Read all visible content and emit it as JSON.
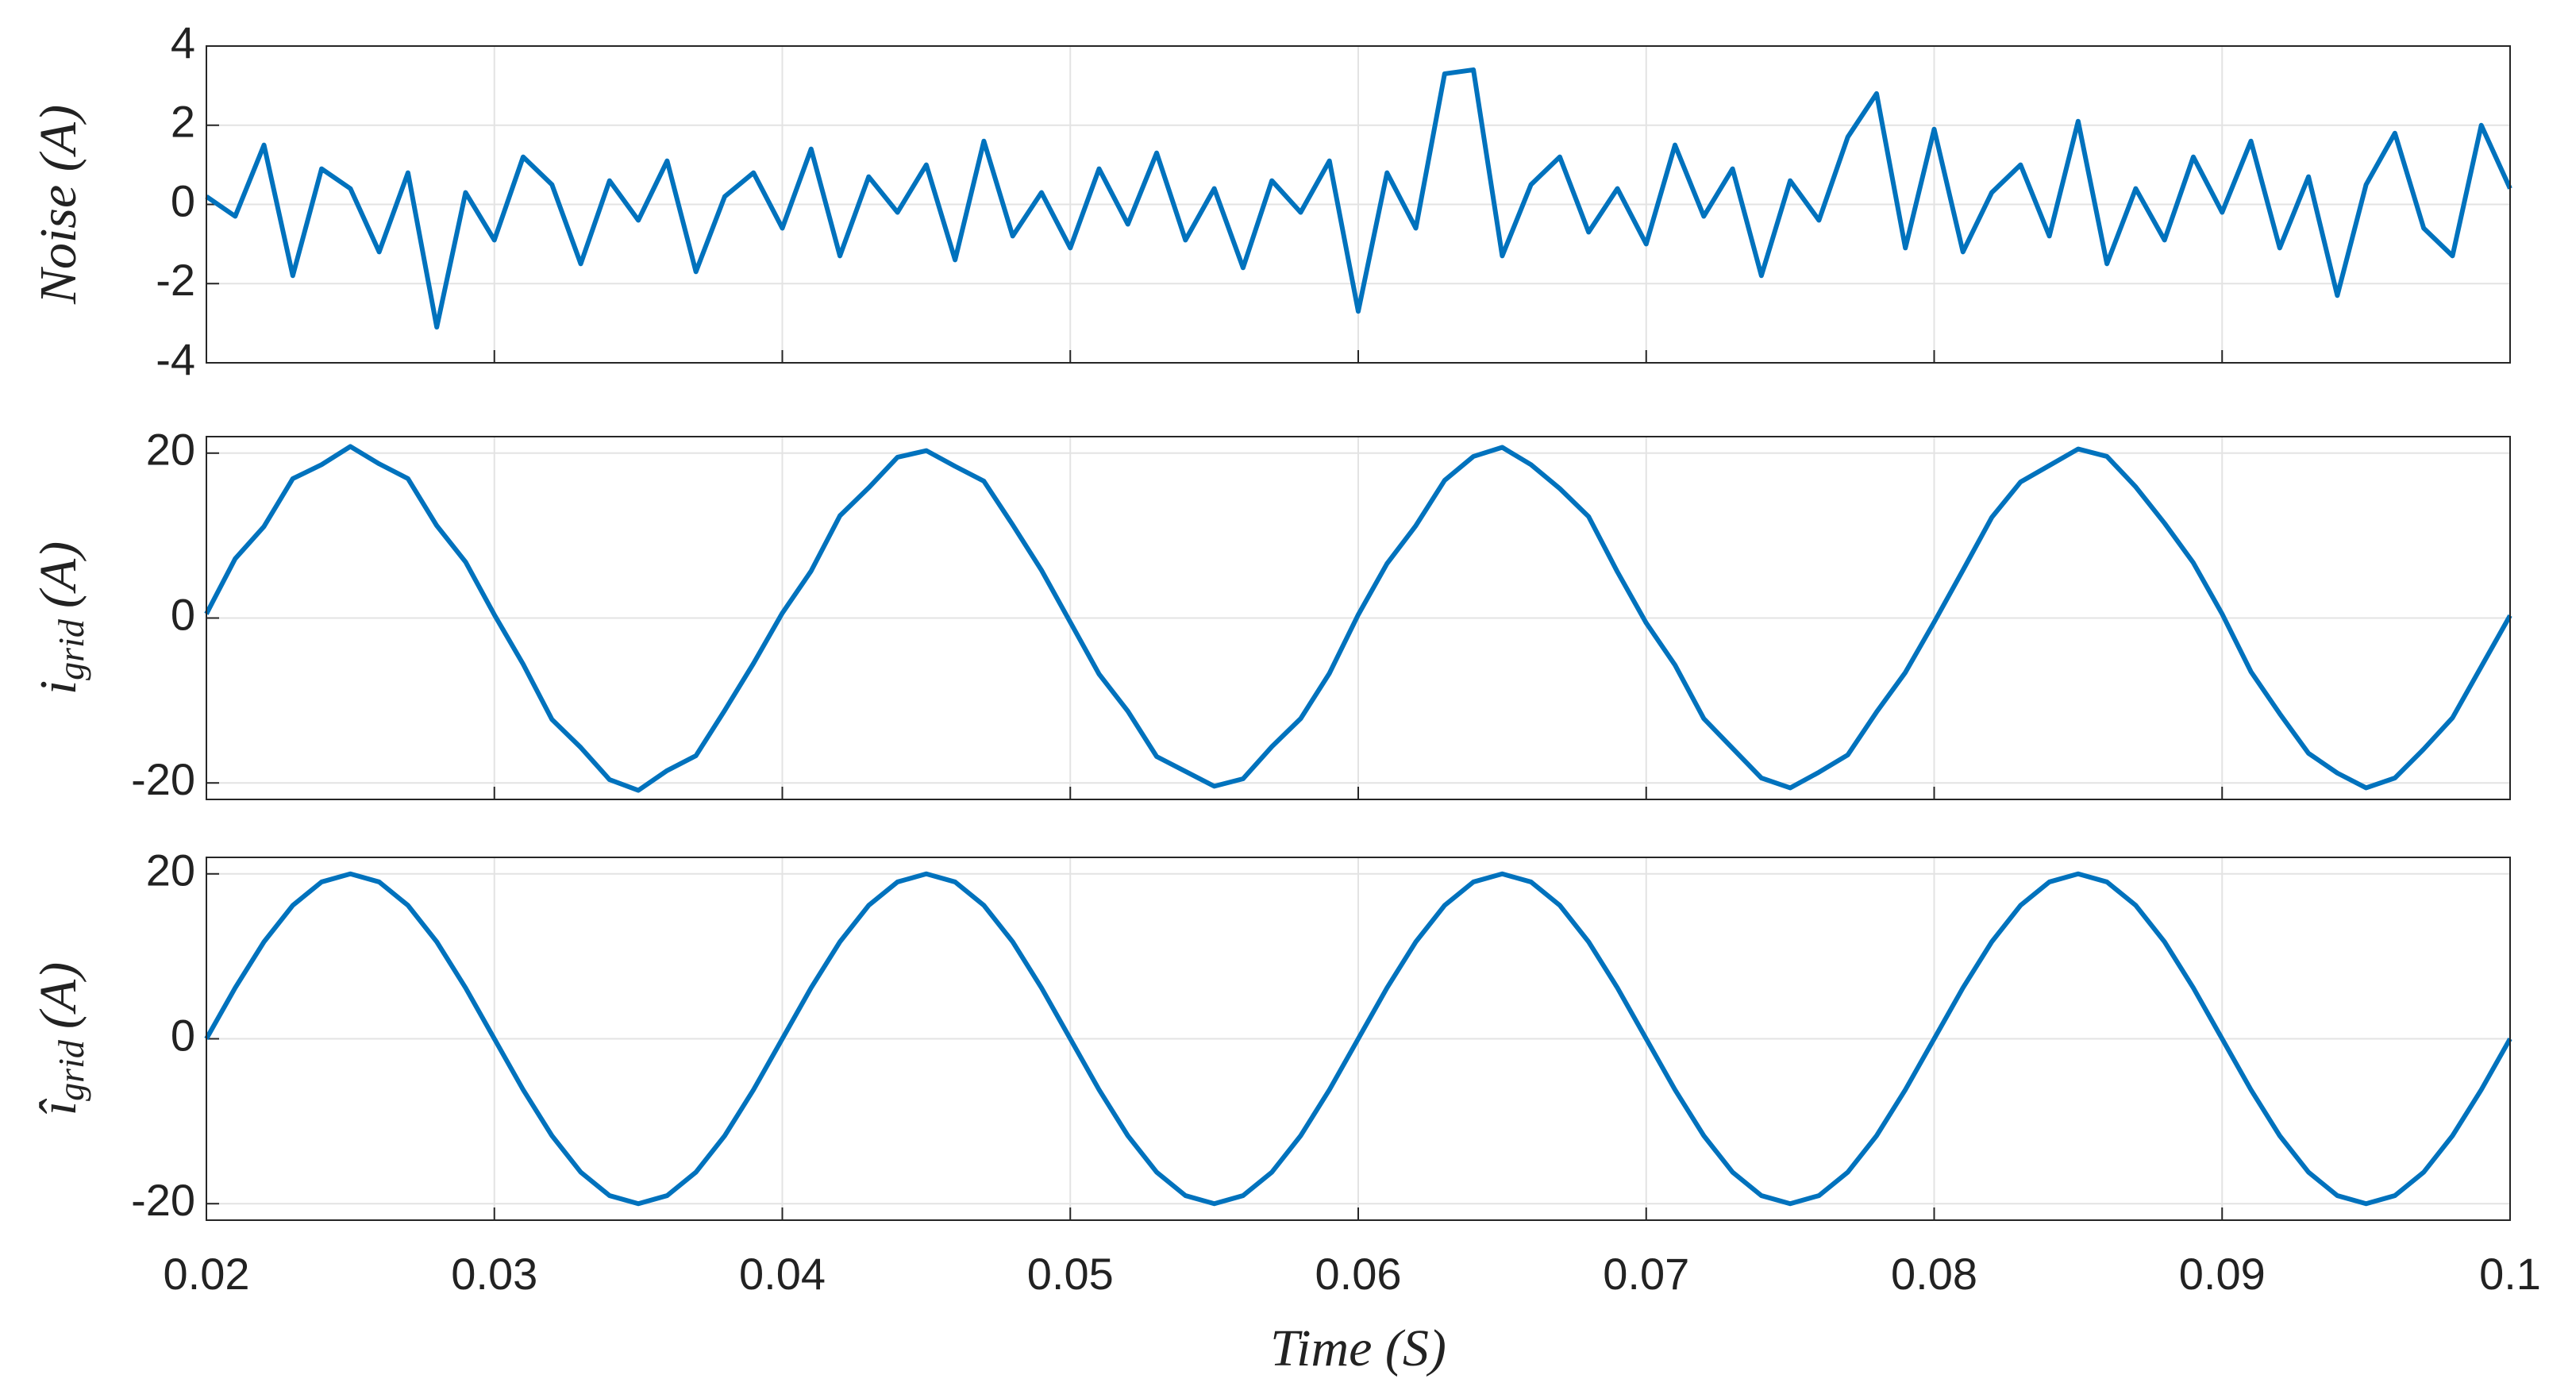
{
  "chart_data": [
    {
      "type": "line",
      "ylabel": "Noise (A)",
      "color": "#0072bd",
      "grid": true,
      "ylim": [
        -4,
        4
      ],
      "yticks": [
        -4,
        -2,
        0,
        2,
        4
      ],
      "xlim": [
        0.02,
        0.1
      ],
      "xticks": [
        0.02,
        0.03,
        0.04,
        0.05,
        0.06,
        0.07,
        0.08,
        0.09,
        0.1
      ],
      "x": [
        0.02,
        0.021,
        0.022,
        0.023,
        0.024,
        0.025,
        0.026,
        0.027,
        0.028,
        0.029,
        0.03,
        0.031,
        0.032,
        0.033,
        0.034,
        0.035,
        0.036,
        0.037,
        0.038,
        0.039,
        0.04,
        0.041,
        0.042,
        0.043,
        0.044,
        0.045,
        0.046,
        0.047,
        0.048,
        0.049,
        0.05,
        0.051,
        0.052,
        0.053,
        0.054,
        0.055,
        0.056,
        0.057,
        0.058,
        0.059,
        0.06,
        0.061,
        0.062,
        0.063,
        0.064,
        0.065,
        0.066,
        0.067,
        0.068,
        0.069,
        0.07,
        0.071,
        0.072,
        0.073,
        0.074,
        0.075,
        0.076,
        0.077,
        0.078,
        0.079,
        0.08,
        0.081,
        0.082,
        0.083,
        0.084,
        0.085,
        0.086,
        0.087,
        0.088,
        0.089,
        0.09,
        0.091,
        0.092,
        0.093,
        0.094,
        0.095,
        0.096,
        0.097,
        0.098,
        0.099,
        0.1
      ],
      "values": [
        0.2,
        -0.3,
        1.5,
        -1.8,
        0.9,
        0.4,
        -1.2,
        0.8,
        -3.1,
        0.3,
        -0.9,
        1.2,
        0.5,
        -1.5,
        0.6,
        -0.4,
        1.1,
        -1.7,
        0.2,
        0.8,
        -0.6,
        1.4,
        -1.3,
        0.7,
        -0.2,
        1.0,
        -1.4,
        1.6,
        -0.8,
        0.3,
        -1.1,
        0.9,
        -0.5,
        1.3,
        -0.9,
        0.4,
        -1.6,
        0.6,
        -0.2,
        1.1,
        -2.7,
        0.8,
        -0.6,
        3.3,
        3.4,
        -1.3,
        0.5,
        1.2,
        -0.7,
        0.4,
        -1.0,
        1.5,
        -0.3,
        0.9,
        -1.8,
        0.6,
        -0.4,
        1.7,
        2.8,
        -1.1,
        1.9,
        -1.2,
        0.3,
        1.0,
        -0.8,
        2.1,
        -1.5,
        0.4,
        -0.9,
        1.2,
        -0.2,
        1.6,
        -1.1,
        0.7,
        -2.3,
        0.5,
        1.8,
        -0.6,
        -1.3,
        2.0,
        0.4
      ]
    },
    {
      "type": "line",
      "ylabel": {
        "symbol": "i",
        "subscript": "grid",
        "unit": "(A)"
      },
      "color": "#0072bd",
      "grid": true,
      "ylim": [
        -22,
        22
      ],
      "yticks": [
        -20,
        0,
        20
      ],
      "xlim": [
        0.02,
        0.1
      ],
      "xticks": [
        0.02,
        0.03,
        0.04,
        0.05,
        0.06,
        0.07,
        0.08,
        0.09,
        0.1
      ],
      "x": [
        0.02,
        0.021,
        0.022,
        0.023,
        0.024,
        0.025,
        0.026,
        0.027,
        0.028,
        0.029,
        0.03,
        0.031,
        0.032,
        0.033,
        0.034,
        0.035,
        0.036,
        0.037,
        0.038,
        0.039,
        0.04,
        0.041,
        0.042,
        0.043,
        0.044,
        0.045,
        0.046,
        0.047,
        0.048,
        0.049,
        0.05,
        0.051,
        0.052,
        0.053,
        0.054,
        0.055,
        0.056,
        0.057,
        0.058,
        0.059,
        0.06,
        0.061,
        0.062,
        0.063,
        0.064,
        0.065,
        0.066,
        0.067,
        0.068,
        0.069,
        0.07,
        0.071,
        0.072,
        0.073,
        0.074,
        0.075,
        0.076,
        0.077,
        0.078,
        0.079,
        0.08,
        0.081,
        0.082,
        0.083,
        0.084,
        0.085,
        0.086,
        0.087,
        0.088,
        0.089,
        0.09,
        0.091,
        0.092,
        0.093,
        0.094,
        0.095,
        0.096,
        0.097,
        0.098,
        0.099,
        0.1
      ],
      "values": [
        0.5,
        7.2,
        11.1,
        16.9,
        18.6,
        20.8,
        18.7,
        16.9,
        11.2,
        6.8,
        0.4,
        -5.6,
        -12.3,
        -15.7,
        -19.6,
        -20.9,
        -18.5,
        -16.7,
        -11.2,
        -5.5,
        0.6,
        5.7,
        12.4,
        15.8,
        19.5,
        20.3,
        18.4,
        16.6,
        11.3,
        5.8,
        -0.5,
        -6.8,
        -11.3,
        -16.8,
        -18.6,
        -20.4,
        -19.5,
        -15.6,
        -12.2,
        -6.7,
        0.4,
        6.6,
        11.2,
        16.7,
        19.6,
        20.7,
        18.6,
        15.7,
        12.3,
        5.6,
        -0.6,
        -5.7,
        -12.2,
        -15.8,
        -19.4,
        -20.6,
        -18.7,
        -16.6,
        -11.4,
        -6.6,
        -0.5,
        5.8,
        12.2,
        16.5,
        18.5,
        20.5,
        19.6,
        15.9,
        11.5,
        6.7,
        0.5,
        -6.5,
        -11.6,
        -16.4,
        -18.8,
        -20.6,
        -19.4,
        -15.9,
        -12.1,
        -5.9,
        0.3
      ]
    },
    {
      "type": "line",
      "ylabel": {
        "symbol": "î",
        "subscript": "grid",
        "unit": "(A)"
      },
      "xlabel": "Time (S)",
      "color": "#0072bd",
      "grid": true,
      "ylim": [
        -22,
        22
      ],
      "yticks": [
        -20,
        0,
        20
      ],
      "xlim": [
        0.02,
        0.1
      ],
      "xticks": [
        0.02,
        0.03,
        0.04,
        0.05,
        0.06,
        0.07,
        0.08,
        0.09,
        0.1
      ],
      "x": [
        0.02,
        0.021,
        0.022,
        0.023,
        0.024,
        0.025,
        0.026,
        0.027,
        0.028,
        0.029,
        0.03,
        0.031,
        0.032,
        0.033,
        0.034,
        0.035,
        0.036,
        0.037,
        0.038,
        0.039,
        0.04,
        0.041,
        0.042,
        0.043,
        0.044,
        0.045,
        0.046,
        0.047,
        0.048,
        0.049,
        0.05,
        0.051,
        0.052,
        0.053,
        0.054,
        0.055,
        0.056,
        0.057,
        0.058,
        0.059,
        0.06,
        0.061,
        0.062,
        0.063,
        0.064,
        0.065,
        0.066,
        0.067,
        0.068,
        0.069,
        0.07,
        0.071,
        0.072,
        0.073,
        0.074,
        0.075,
        0.076,
        0.077,
        0.078,
        0.079,
        0.08,
        0.081,
        0.082,
        0.083,
        0.084,
        0.085,
        0.086,
        0.087,
        0.088,
        0.089,
        0.09,
        0.091,
        0.092,
        0.093,
        0.094,
        0.095,
        0.096,
        0.097,
        0.098,
        0.099,
        0.1
      ],
      "values": [
        0,
        6.18,
        11.76,
        16.18,
        19.02,
        20,
        19.02,
        16.18,
        11.76,
        6.18,
        0,
        -6.18,
        -11.76,
        -16.18,
        -19.02,
        -20,
        -19.02,
        -16.18,
        -11.76,
        -6.18,
        0,
        6.18,
        11.76,
        16.18,
        19.02,
        20,
        19.02,
        16.18,
        11.76,
        6.18,
        0,
        -6.18,
        -11.76,
        -16.18,
        -19.02,
        -20,
        -19.02,
        -16.18,
        -11.76,
        -6.18,
        0,
        6.18,
        11.76,
        16.18,
        19.02,
        20,
        19.02,
        16.18,
        11.76,
        6.18,
        0,
        -6.18,
        -11.76,
        -16.18,
        -19.02,
        -20,
        -19.02,
        -16.18,
        -11.76,
        -6.18,
        0,
        6.18,
        11.76,
        16.18,
        19.02,
        20,
        19.02,
        16.18,
        11.76,
        6.18,
        0,
        -6.18,
        -11.76,
        -16.18,
        -19.02,
        -20,
        -19.02,
        -16.18,
        -11.76,
        -6.18,
        0
      ]
    }
  ]
}
